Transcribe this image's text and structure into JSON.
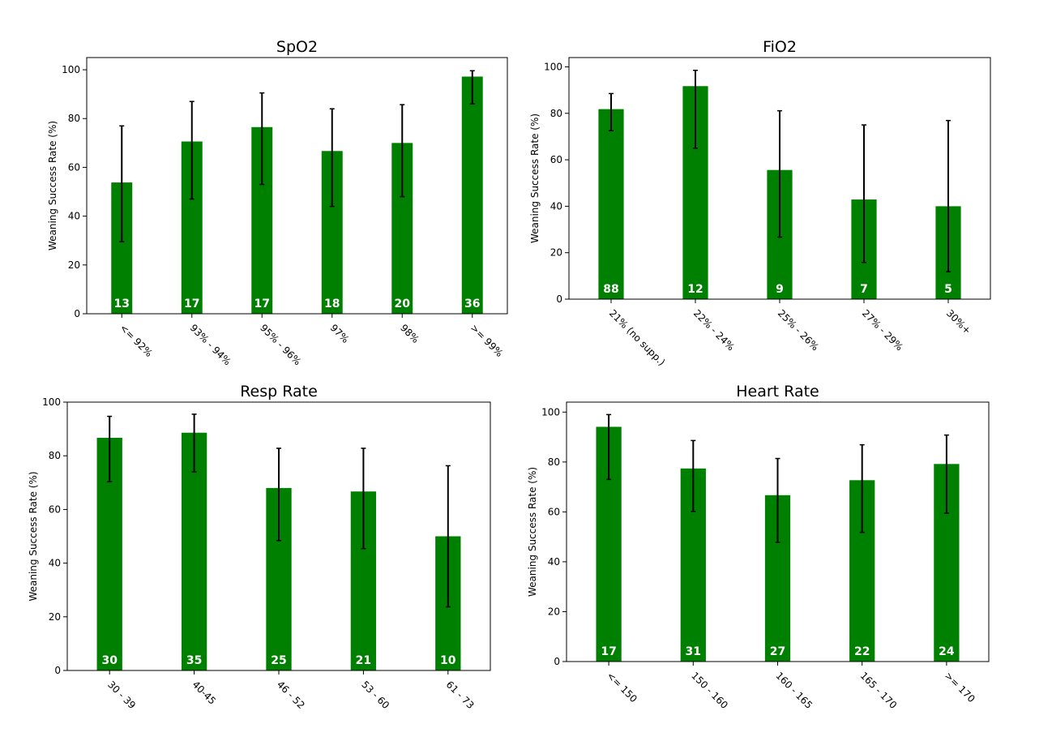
{
  "colors": {
    "bar": "#008000",
    "error": "#000000",
    "count_text": "#ffffff"
  },
  "chart_data": [
    {
      "type": "bar",
      "title": "SpO2",
      "ylabel": "Weaning Success Rate (%)",
      "ylim": [
        0,
        105
      ],
      "yticks": [
        0,
        20,
        40,
        60,
        80,
        100
      ],
      "categories": [
        "<= 92%",
        "93% - 94%",
        "95% - 96%",
        "97%",
        "98%",
        ">= 99%"
      ],
      "values": [
        53.8,
        70.6,
        76.5,
        66.7,
        70.0,
        97.2
      ],
      "err_low": [
        29.5,
        47.0,
        53.0,
        44.0,
        48.0,
        86.0
      ],
      "err_high": [
        77.0,
        87.0,
        90.5,
        84.0,
        85.7,
        99.6
      ],
      "counts": [
        "13",
        "17",
        "17",
        "18",
        "20",
        "36"
      ],
      "grid": false
    },
    {
      "type": "bar",
      "title": "FiO2",
      "ylabel": "Weaning Success Rate (%)",
      "ylim": [
        0,
        104
      ],
      "yticks": [
        0,
        20,
        40,
        60,
        80,
        100
      ],
      "categories": [
        "21% (no supp.)",
        "22% - 24%",
        "25% - 26%",
        "27% - 29%",
        "30%+"
      ],
      "values": [
        81.8,
        91.7,
        55.6,
        42.9,
        40.0
      ],
      "err_low": [
        72.5,
        65.0,
        26.7,
        15.8,
        11.8
      ],
      "err_high": [
        88.5,
        98.5,
        81.1,
        75.0,
        76.9
      ],
      "counts": [
        "88",
        "12",
        "9",
        "7",
        "5"
      ],
      "grid": false
    },
    {
      "type": "bar",
      "title": "Resp Rate",
      "ylabel": "Weaning Success Rate (%)",
      "ylim": [
        0,
        100
      ],
      "yticks": [
        0,
        20,
        40,
        60,
        80,
        100
      ],
      "categories": [
        "30 - 39",
        "40-45",
        "46 - 52",
        "53 - 60",
        "61 - 73"
      ],
      "values": [
        86.7,
        88.6,
        68.0,
        66.7,
        50.0
      ],
      "err_low": [
        70.3,
        74.0,
        48.4,
        45.4,
        23.7
      ],
      "err_high": [
        94.7,
        95.5,
        82.8,
        82.8,
        76.3
      ],
      "counts": [
        "30",
        "35",
        "25",
        "21",
        "10"
      ],
      "grid": false
    },
    {
      "type": "bar",
      "title": "Heart Rate",
      "ylabel": "Weaning Success Rate (%)",
      "ylim": [
        0,
        104
      ],
      "yticks": [
        0,
        20,
        40,
        60,
        80,
        100
      ],
      "categories": [
        "<= 150",
        "150 - 160",
        "160 - 165",
        "165 - 170",
        ">= 170"
      ],
      "values": [
        94.1,
        77.4,
        66.7,
        72.7,
        79.2
      ],
      "err_low": [
        73.0,
        60.2,
        47.8,
        51.8,
        59.5
      ],
      "err_high": [
        99.0,
        88.6,
        81.4,
        86.9,
        90.8
      ],
      "counts": [
        "17",
        "31",
        "27",
        "22",
        "24"
      ],
      "grid": false
    }
  ]
}
